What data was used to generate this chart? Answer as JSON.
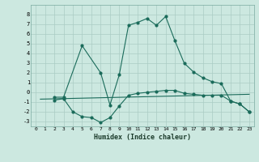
{
  "xlabel": "Humidex (Indice chaleur)",
  "ylabel": "",
  "background_color": "#cce8e0",
  "grid_color": "#aaccC4",
  "line_color": "#1a6b5a",
  "xlim": [
    -0.5,
    23.5
  ],
  "ylim": [
    -3.5,
    9.0
  ],
  "xticks": [
    0,
    1,
    2,
    3,
    4,
    5,
    6,
    7,
    8,
    9,
    10,
    11,
    12,
    13,
    14,
    15,
    16,
    17,
    18,
    19,
    20,
    21,
    22,
    23
  ],
  "yticks": [
    -3,
    -2,
    -1,
    0,
    1,
    2,
    3,
    4,
    5,
    6,
    7,
    8
  ],
  "curve1_x": [
    2,
    3,
    5,
    7,
    8,
    9,
    10,
    11,
    12,
    13,
    14,
    15,
    16,
    17,
    18,
    19,
    20,
    21,
    22,
    23
  ],
  "curve1_y": [
    -0.5,
    -0.5,
    4.8,
    2.0,
    -1.3,
    1.8,
    6.9,
    7.2,
    7.6,
    6.9,
    7.8,
    5.3,
    3.0,
    2.1,
    1.5,
    1.1,
    0.9,
    -0.9,
    -1.2,
    -2.0
  ],
  "curve2_x": [
    2,
    3,
    4,
    5,
    6,
    7,
    8,
    9,
    10,
    11,
    12,
    13,
    14,
    15,
    16,
    17,
    18,
    19,
    20,
    21,
    22,
    23
  ],
  "curve2_y": [
    -0.8,
    -0.65,
    -2.0,
    -2.5,
    -2.6,
    -3.1,
    -2.6,
    -1.4,
    -0.3,
    -0.1,
    0.0,
    0.1,
    0.2,
    0.2,
    -0.1,
    -0.2,
    -0.3,
    -0.3,
    -0.3,
    -0.9,
    -1.2,
    -2.0
  ],
  "curve3_x": [
    0.5,
    23
  ],
  "curve3_y": [
    -0.7,
    -0.2
  ],
  "fig_width": 3.2,
  "fig_height": 2.0,
  "dpi": 100
}
